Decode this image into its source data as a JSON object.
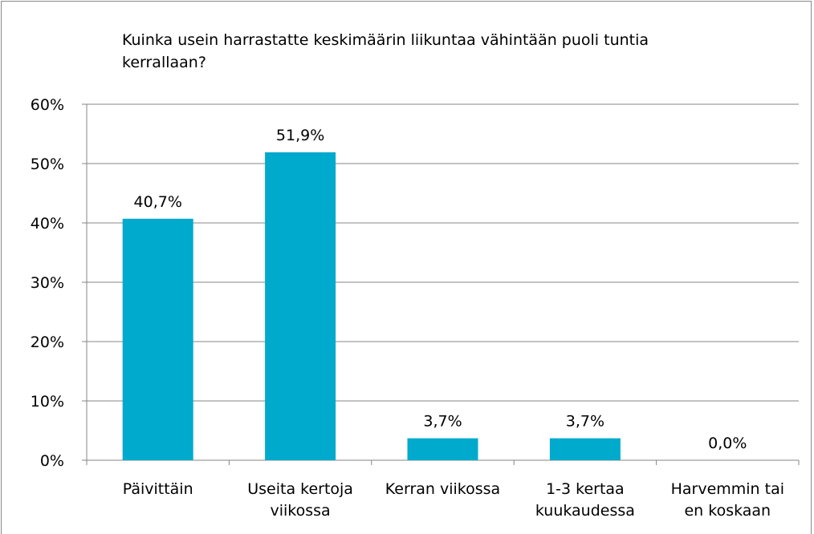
{
  "chart_data": {
    "type": "bar",
    "title": "Kuinka usein harrastatte keskimäärin liikuntaa vähintään puoli tuntia kerrallaan?",
    "categories": [
      "Päivittäin",
      "Useita kertoja\nviikossa",
      "Kerran viikossa",
      "1-3 kertaa\nkuukaudessa",
      "Harvemmin tai\nen koskaan"
    ],
    "values": [
      40.7,
      51.9,
      3.7,
      3.7,
      0.0
    ],
    "value_labels": [
      "40,7%",
      "51,9%",
      "3,7%",
      "3,7%",
      "0,0%"
    ],
    "color": "#00aacc",
    "ylim": [
      0,
      60
    ],
    "yticks": [
      {
        "value": 0,
        "label": "0%"
      },
      {
        "value": 10,
        "label": "10%"
      },
      {
        "value": 20,
        "label": "20%"
      },
      {
        "value": 30,
        "label": "30%"
      },
      {
        "value": 40,
        "label": "40%"
      },
      {
        "value": 50,
        "label": "50%"
      },
      {
        "value": 60,
        "label": "60%"
      }
    ],
    "grid": true
  }
}
